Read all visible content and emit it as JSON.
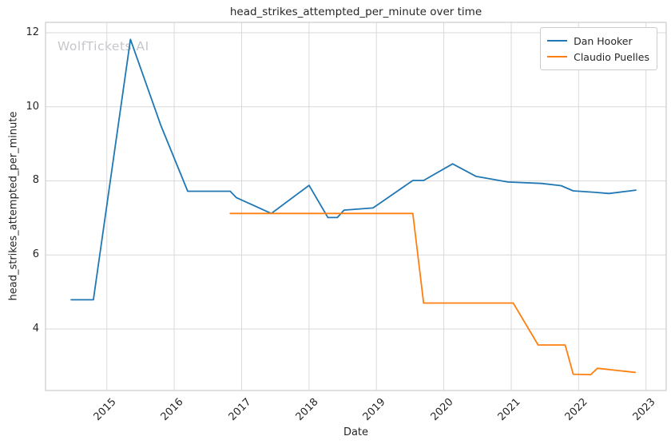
{
  "figure": {
    "watermark": "WolfTickets AI"
  },
  "colors": {
    "grid": "#d9d9d9",
    "spine": "#cccccc",
    "text": "#262626",
    "watermark": "#c6c6cc",
    "background": "#ffffff"
  },
  "chart_data": {
    "type": "line",
    "title": "head_strikes_attempted_per_minute over time",
    "xlabel": "Date",
    "ylabel": "head_strikes_attempted_per_minute",
    "grid": true,
    "legend_position": "upper right",
    "xlim": [
      2014.09,
      2023.3
    ],
    "ylim": [
      2.34,
      12.28
    ],
    "xticks": [
      2015,
      2016,
      2017,
      2018,
      2019,
      2020,
      2021,
      2022,
      2023
    ],
    "yticks": [
      4,
      6,
      8,
      10,
      12
    ],
    "series": [
      {
        "name": "Dan Hooker",
        "color": "#1f77b4",
        "points": [
          [
            2014.47,
            4.79
          ],
          [
            2014.8,
            4.79
          ],
          [
            2015.35,
            11.82
          ],
          [
            2015.8,
            9.5
          ],
          [
            2016.2,
            7.72
          ],
          [
            2016.83,
            7.72
          ],
          [
            2016.92,
            7.55
          ],
          [
            2017.44,
            7.12
          ],
          [
            2018.0,
            7.88
          ],
          [
            2018.28,
            7.01
          ],
          [
            2018.42,
            7.01
          ],
          [
            2018.52,
            7.21
          ],
          [
            2018.95,
            7.27
          ],
          [
            2019.54,
            8.01
          ],
          [
            2019.7,
            8.01
          ],
          [
            2020.13,
            8.46
          ],
          [
            2020.48,
            8.12
          ],
          [
            2020.95,
            7.97
          ],
          [
            2021.45,
            7.93
          ],
          [
            2021.74,
            7.87
          ],
          [
            2021.92,
            7.73
          ],
          [
            2022.25,
            7.69
          ],
          [
            2022.45,
            7.66
          ],
          [
            2022.85,
            7.75
          ]
        ]
      },
      {
        "name": "Claudio Puelles",
        "color": "#ff7f0e",
        "points": [
          [
            2016.83,
            7.12
          ],
          [
            2019.54,
            7.12
          ],
          [
            2019.7,
            4.7
          ],
          [
            2021.03,
            4.7
          ],
          [
            2021.4,
            3.57
          ],
          [
            2021.8,
            3.57
          ],
          [
            2021.92,
            2.78
          ],
          [
            2022.18,
            2.77
          ],
          [
            2022.28,
            2.94
          ],
          [
            2022.84,
            2.83
          ]
        ]
      }
    ]
  }
}
